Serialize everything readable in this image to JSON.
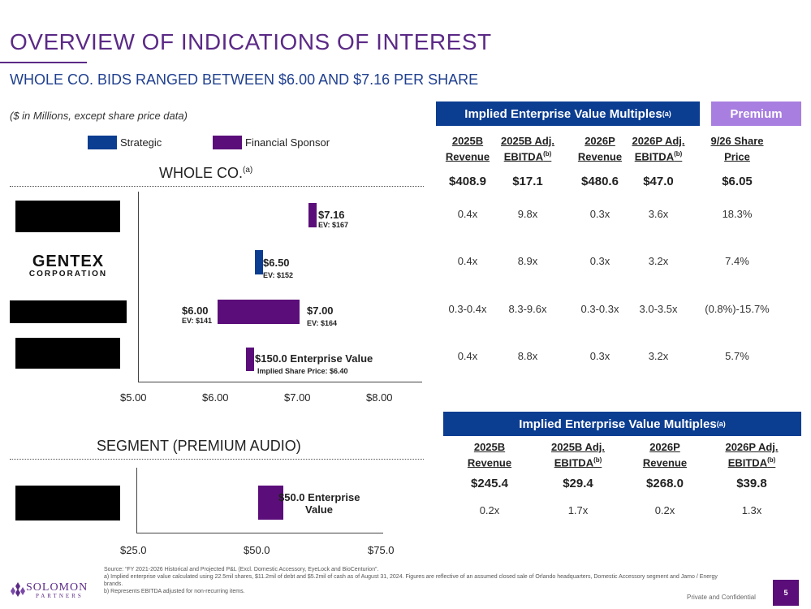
{
  "header": {
    "title": "OVERVIEW OF INDICATIONS OF INTEREST",
    "subtitle": "WHOLE CO. BIDS RANGED BETWEEN $6.00 AND $7.16 PER SHARE",
    "units_note": "($ in Millions, except share price data)"
  },
  "legend": {
    "strategic": "Strategic",
    "financial": "Financial Sponsor",
    "strategic_color": "#0b3d91",
    "financial_color": "#5b0e7a"
  },
  "whole_co": {
    "title": "WHOLE CO.",
    "title_sup": "(a)",
    "axis_ticks": [
      "$5.00",
      "$6.00",
      "$7.00",
      "$8.00"
    ],
    "axis_range": [
      5.0,
      8.0
    ],
    "bidders": [
      {
        "name": "",
        "type": "financial",
        "low": 7.16,
        "high": 7.16,
        "label": "$7.16",
        "ev": "EV: $167"
      },
      {
        "name": "GENTEX",
        "name_sub": "CORPORATION",
        "type": "strategic",
        "low": 6.5,
        "high": 6.5,
        "label": "$6.50",
        "ev": "EV: $152"
      },
      {
        "name": "",
        "type": "financial",
        "low": 6.0,
        "high": 7.0,
        "low_label": "$6.00",
        "low_ev": "EV: $141",
        "high_label": "$7.00",
        "high_ev": "EV: $164"
      },
      {
        "name": "",
        "type": "financial",
        "low": 6.4,
        "high": 6.4,
        "label": "$150.0 Enterprise Value",
        "ev": "Implied Share Price: $6.40"
      }
    ]
  },
  "segment": {
    "title": "SEGMENT (PREMIUM AUDIO)",
    "axis_ticks": [
      "$25.0",
      "$50.0",
      "$75.0"
    ],
    "axis_range": [
      25.0,
      75.0
    ],
    "bidders": [
      {
        "name": "",
        "type": "financial",
        "value": 50.0,
        "label_line1": "$50.0 Enterprise",
        "label_line2": "Value"
      }
    ]
  },
  "table1": {
    "band": "Implied Enterprise Value Multiples",
    "band_sup": "(a)",
    "premium_band": "Premium",
    "columns": [
      {
        "line1": "2025B",
        "line2": "Revenue",
        "sup": ""
      },
      {
        "line1": "2025B Adj.",
        "line2": "EBITDA",
        "sup": "(b)"
      },
      {
        "line1": "2026P",
        "line2": "Revenue",
        "sup": ""
      },
      {
        "line1": "2026P Adj.",
        "line2": "EBITDA",
        "sup": "(b)"
      },
      {
        "line1": "9/26 Share",
        "line2": "Price",
        "sup": ""
      }
    ],
    "base": [
      "$408.9",
      "$17.1",
      "$480.6",
      "$47.0",
      "$6.05"
    ],
    "rows": [
      [
        "0.4x",
        "9.8x",
        "0.3x",
        "3.6x",
        "18.3%"
      ],
      [
        "0.4x",
        "8.9x",
        "0.3x",
        "3.2x",
        "7.4%"
      ],
      [
        "0.3-0.4x",
        "8.3-9.6x",
        "0.3-0.3x",
        "3.0-3.5x",
        "(0.8%)-15.7%"
      ],
      [
        "0.4x",
        "8.8x",
        "0.3x",
        "3.2x",
        "5.7%"
      ]
    ]
  },
  "table2": {
    "band": "Implied Enterprise Value Multiples",
    "band_sup": "(a)",
    "columns": [
      {
        "line1": "2025B",
        "line2": "Revenue",
        "sup": ""
      },
      {
        "line1": "2025B Adj.",
        "line2": "EBITDA",
        "sup": "(b)"
      },
      {
        "line1": "2026P",
        "line2": "Revenue",
        "sup": ""
      },
      {
        "line1": "2026P Adj.",
        "line2": "EBITDA",
        "sup": "(b)"
      }
    ],
    "base": [
      "$245.4",
      "$29.4",
      "$268.0",
      "$39.8"
    ],
    "rows": [
      [
        "0.2x",
        "1.7x",
        "0.2x",
        "1.3x"
      ]
    ]
  },
  "footer": {
    "source": "Source: “FY 2021-2026 Historical and Projected P&L (Excl. Domestic Accessory, EyeLock and BioCenturion”.",
    "note_a": "a) Implied enterprise value calculated using 22.5mil shares, $11.2mil of debt and $5.2mil of cash as of August 31, 2024. Figures are reflective of an assumed closed sale of Orlando headquarters, Domestic Accessory segment and Jamo / Energy brands.",
    "note_b": "b) Represents EBITDA adjusted for non-recurring items.",
    "confidential": "Private and Confidential",
    "page": "5",
    "logo_name": "SOLOMON",
    "logo_sub": "PARTNERS"
  }
}
